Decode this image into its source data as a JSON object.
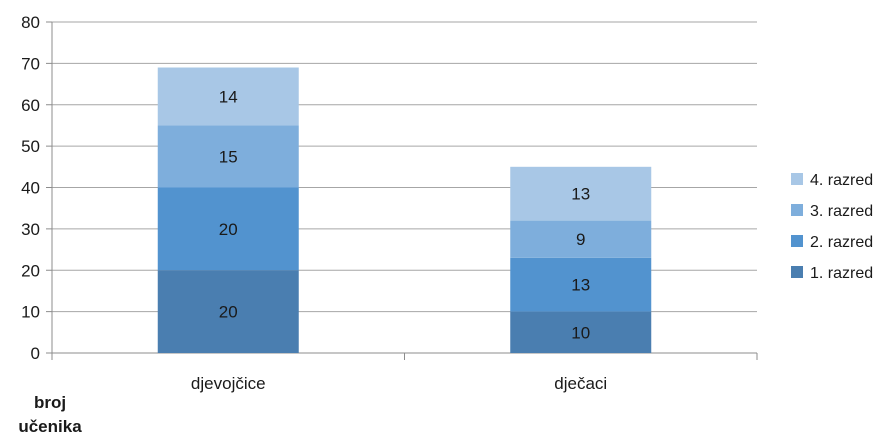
{
  "chart_data": {
    "type": "bar",
    "stacked": true,
    "categories": [
      "djevojčice",
      "dječaci"
    ],
    "series": [
      {
        "name": "1. razred",
        "values": [
          20,
          10
        ],
        "color": "#4a7eb0"
      },
      {
        "name": "2. razred",
        "values": [
          20,
          13
        ],
        "color": "#5293cf"
      },
      {
        "name": "3. razred",
        "values": [
          15,
          9
        ],
        "color": "#7eaedc"
      },
      {
        "name": "4. razred",
        "values": [
          14,
          13
        ],
        "color": "#a8c7e6"
      }
    ],
    "data_labels": true,
    "ylabel": [
      "broj",
      "učenika"
    ],
    "xlabel": "",
    "ylim": [
      0,
      80
    ],
    "yticks": [
      0,
      10,
      20,
      30,
      40,
      50,
      60,
      70,
      80
    ],
    "grid": true,
    "legend": "right",
    "legend_order": [
      "4. razred",
      "3. razred",
      "2. razred",
      "1. razred"
    ]
  }
}
